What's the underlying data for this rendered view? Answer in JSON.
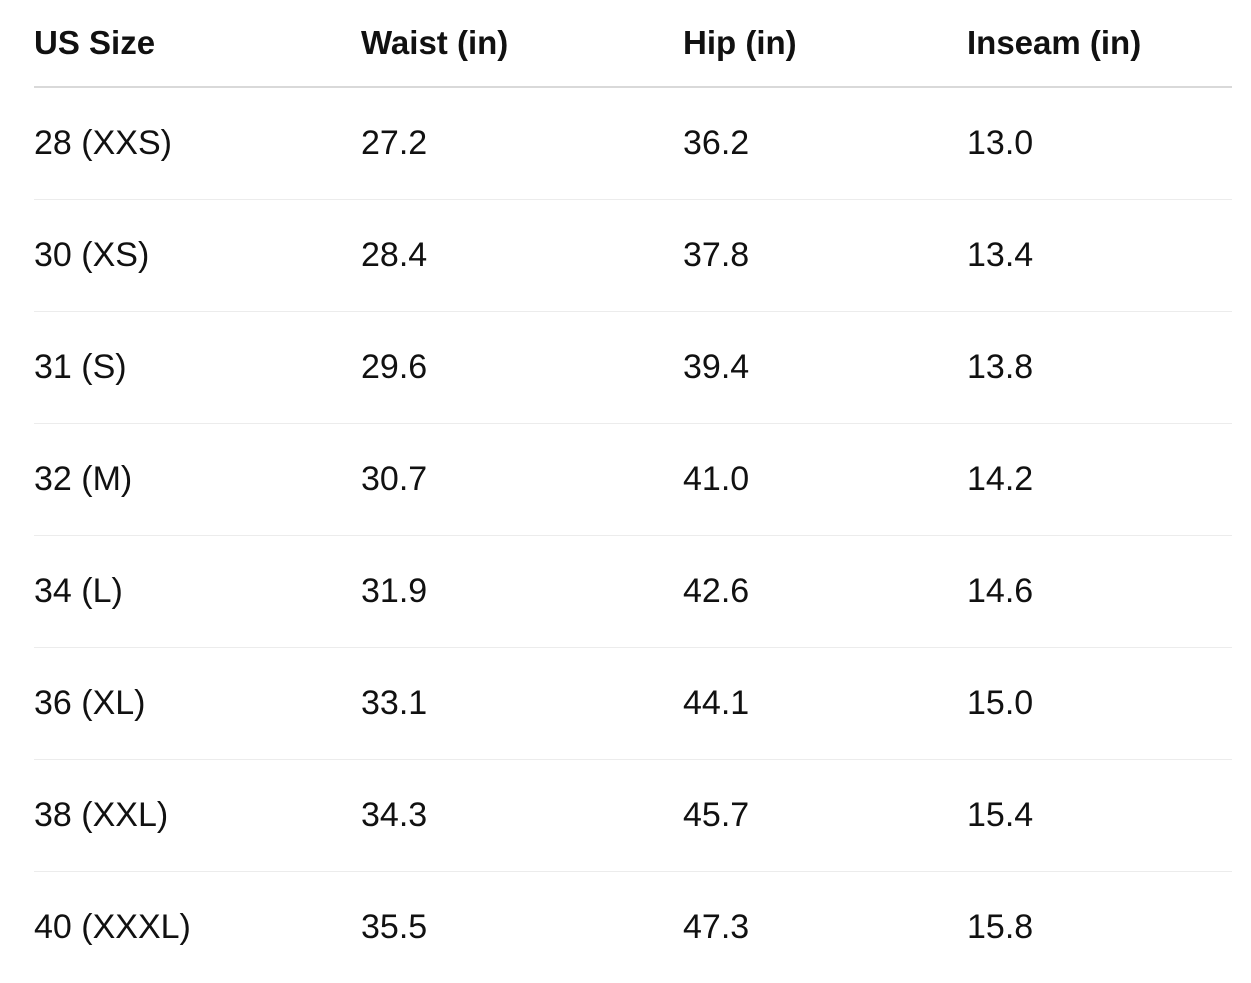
{
  "table": {
    "headers": [
      "US Size",
      "Waist (in)",
      "Hip (in)",
      "Inseam (in)"
    ],
    "rows": [
      [
        "28 (XXS)",
        "27.2",
        "36.2",
        "13.0"
      ],
      [
        "30 (XS)",
        "28.4",
        "37.8",
        "13.4"
      ],
      [
        "31 (S)",
        "29.6",
        "39.4",
        "13.8"
      ],
      [
        "32 (M)",
        "30.7",
        "41.0",
        "14.2"
      ],
      [
        "34 (L)",
        "31.9",
        "42.6",
        "14.6"
      ],
      [
        "36 (XL)",
        "33.1",
        "44.1",
        "15.0"
      ],
      [
        "38 (XXL)",
        "34.3",
        "45.7",
        "15.4"
      ],
      [
        "40 (XXXL)",
        "35.5",
        "47.3",
        "15.8"
      ]
    ]
  }
}
